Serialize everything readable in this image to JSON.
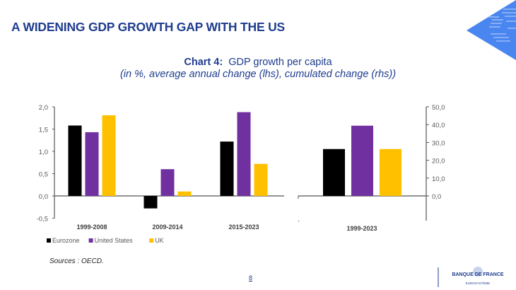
{
  "header": {
    "title": "A WIDENING GDP GROWTH GAP WITH THE US"
  },
  "chart_title": {
    "label": "Chart 4:",
    "text": "GDP growth per capita",
    "subtitle": "(in %, average annual change (lhs), cumulated change (rhs))"
  },
  "chart_data": [
    {
      "type": "bar",
      "categories": [
        "1999-2008",
        "2009-2014",
        "2015-2023"
      ],
      "series": [
        {
          "name": "Eurozone",
          "color": "#000000",
          "values": [
            1.58,
            -0.28,
            1.22
          ]
        },
        {
          "name": "United States",
          "color": "#7030a0",
          "values": [
            1.43,
            0.6,
            1.88
          ]
        },
        {
          "name": "UK",
          "color": "#ffc000",
          "values": [
            1.81,
            0.1,
            0.72
          ]
        }
      ],
      "ylim": [
        -0.5,
        2.0
      ],
      "yticks": [
        "-0,5",
        "0,0",
        "0,5",
        "1,0",
        "1,5",
        "2,0"
      ],
      "grid": false,
      "legend": "bottom-left"
    },
    {
      "type": "bar",
      "categories": [
        "1999-2023"
      ],
      "series": [
        {
          "name": "Eurozone",
          "color": "#000000",
          "values": [
            26.3
          ]
        },
        {
          "name": "United States",
          "color": "#7030a0",
          "values": [
            39.4
          ]
        },
        {
          "name": "UK",
          "color": "#ffc000",
          "values": [
            26.3
          ]
        }
      ],
      "ylim": [
        -10,
        50
      ],
      "yticks": [
        "0,0",
        "10,0",
        "20,0",
        "30,0",
        "40,0",
        "50,0"
      ],
      "axis": "right",
      "grid": false
    }
  ],
  "footer": {
    "sources": "Sources : OECD.",
    "page": "8",
    "logo_text": "BANQUE DE FRANCE",
    "logo_sub": "EUROSYSTÈME"
  }
}
